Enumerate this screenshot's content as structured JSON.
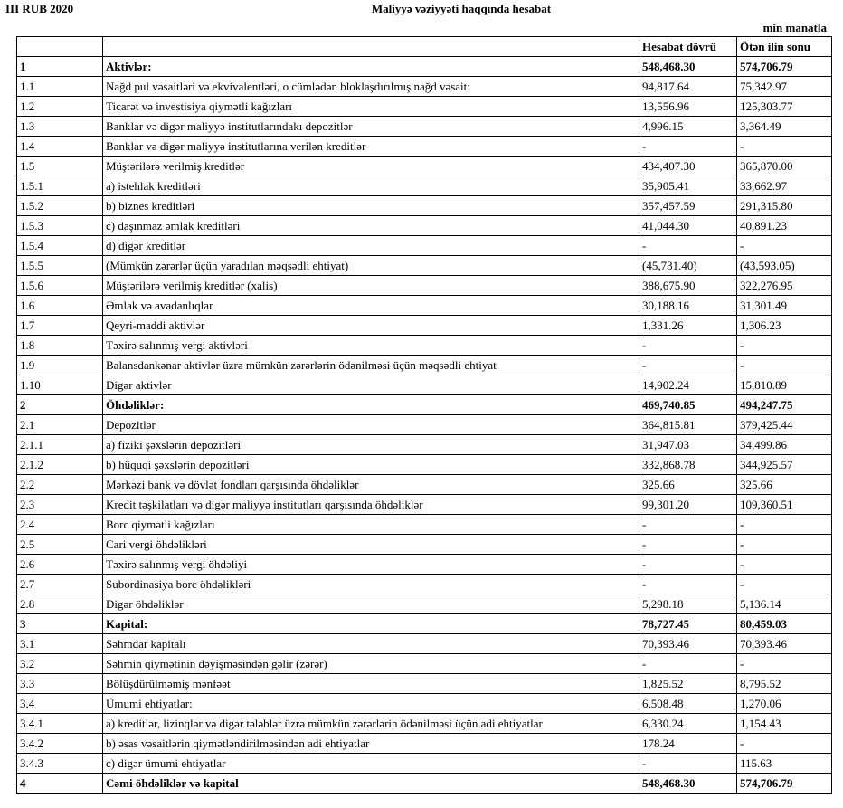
{
  "header": {
    "period": "III RUB 2020",
    "title": "Maliyyə vəziyyəti haqqında hesabat",
    "unit": "min manatla"
  },
  "table": {
    "columns": [
      "Hesabat dövrü",
      "Ötən ilin sonu"
    ],
    "rows": [
      {
        "id": "1",
        "label": "Aktivlər:",
        "current": "548,468.30",
        "previous": "574,706.79",
        "bold": true
      },
      {
        "id": "1.1",
        "label": "Nağd pul vəsaitləri və ekvivalentləri, o cümlədən bloklaşdırılmış nağd vəsait:",
        "current": "94,817.64",
        "previous": "75,342.97"
      },
      {
        "id": "1.2",
        "label": "Ticarət və investisiya qiymətli kağızları",
        "current": "13,556.96",
        "previous": "125,303.77"
      },
      {
        "id": "1.3",
        "label": "Banklar və digər maliyyə institutlarındakı depozitlər",
        "current": "4,996.15",
        "previous": "3,364.49"
      },
      {
        "id": "1.4",
        "label": "Banklar və digər maliyyə institutlarına verilən kreditlər",
        "current": "-",
        "previous": "-"
      },
      {
        "id": "1.5",
        "label": "Müştərilərə verilmiş kreditlər",
        "current": "434,407.30",
        "previous": "365,870.00"
      },
      {
        "id": "1.5.1",
        "label": "a) istehlak kreditləri",
        "current": "35,905.41",
        "previous": "33,662.97"
      },
      {
        "id": "1.5.2",
        "label": "b) biznes kreditləri",
        "current": "357,457.59",
        "previous": "291,315.80"
      },
      {
        "id": "1.5.3",
        "label": "c) daşınmaz əmlak kreditləri",
        "current": "41,044.30",
        "previous": "40,891.23"
      },
      {
        "id": "1.5.4",
        "label": "d) digər kreditlər",
        "current": "-",
        "previous": "-"
      },
      {
        "id": "1.5.5",
        "label": "(Mümkün zərərlər üçün yaradılan məqsədli ehtiyat)",
        "current": "(45,731.40)",
        "previous": "(43,593.05)"
      },
      {
        "id": "1.5.6",
        "label": "Müştərilərə verilmiş kreditlər (xalis)",
        "current": "388,675.90",
        "previous": "322,276.95"
      },
      {
        "id": "1.6",
        "label": "Əmlak və avadanlıqlar",
        "current": "30,188.16",
        "previous": "31,301.49"
      },
      {
        "id": "1.7",
        "label": "Qeyri-maddi aktivlər",
        "current": "1,331.26",
        "previous": "1,306.23"
      },
      {
        "id": "1.8",
        "label": "Təxirə salınmış vergi aktivləri",
        "current": "-",
        "previous": "-"
      },
      {
        "id": "1.9",
        "label": "Balansdankənar aktivlər üzrə mümkün zərərlərin ödənilməsi üçün məqsədli ehtiyat",
        "current": "-",
        "previous": "-"
      },
      {
        "id": "1.10",
        "label": "Digər aktivlər",
        "current": "14,902.24",
        "previous": "15,810.89"
      },
      {
        "id": "2",
        "label": "Öhdəliklər:",
        "current": "469,740.85",
        "previous": "494,247.75",
        "bold": true
      },
      {
        "id": "2.1",
        "label": "Depozitlər",
        "current": "364,815.81",
        "previous": "379,425.44"
      },
      {
        "id": "2.1.1",
        "label": "a) fiziki şəxslərin depozitləri",
        "current": "31,947.03",
        "previous": "34,499.86"
      },
      {
        "id": "2.1.2",
        "label": "b) hüquqi şəxslərin depozitləri",
        "current": "332,868.78",
        "previous": "344,925.57"
      },
      {
        "id": "2.2",
        "label": "Mərkəzi bank və dövlət fondları qarşısında öhdəliklər",
        "current": "325.66",
        "previous": "325.66"
      },
      {
        "id": "2.3",
        "label": "Kredit təşkilatları və digər maliyyə institutları qarşısında öhdəliklər",
        "current": "99,301.20",
        "previous": "109,360.51"
      },
      {
        "id": "2.4",
        "label": "Borc qiymətli kağızları",
        "current": "-",
        "previous": "-"
      },
      {
        "id": "2.5",
        "label": "Cari vergi öhdəlikləri",
        "current": "-",
        "previous": "-"
      },
      {
        "id": "2.6",
        "label": "Təxirə salınmış vergi öhdəliyi",
        "current": "-",
        "previous": "-"
      },
      {
        "id": "2.7",
        "label": "Subordinasiya borc öhdəlikləri",
        "current": "-",
        "previous": "-"
      },
      {
        "id": "2.8",
        "label": "Digər öhdəliklər",
        "current": "5,298.18",
        "previous": "5,136.14"
      },
      {
        "id": "3",
        "label": "Kapital:",
        "current": "78,727.45",
        "previous": "80,459.03",
        "bold": true
      },
      {
        "id": "3.1",
        "label": "Səhmdar kapitalı",
        "current": "70,393.46",
        "previous": "70,393.46"
      },
      {
        "id": "3.2",
        "label": "Səhmin qiymətinin dəyişməsindən gəlir (zərər)",
        "current": "-",
        "previous": "-"
      },
      {
        "id": "3.3",
        "label": "Bölüşdürülməmiş mənfəət",
        "current": "1,825.52",
        "previous": "8,795.52"
      },
      {
        "id": "3.4",
        "label": "Ümumi ehtiyatlar:",
        "current": "6,508.48",
        "previous": "1,270.06"
      },
      {
        "id": "3.4.1",
        "label": "a) kreditlər, lizinqlər və digər tələblər üzrə mümkün zərərlərin ödənilməsi üçün adi ehtiyatlar",
        "current": "6,330.24",
        "previous": "1,154.43"
      },
      {
        "id": "3.4.2",
        "label": "b) əsas vəsaitlərin qiymətləndirilməsindən adi ehtiyatlar",
        "current": "178.24",
        "previous": "-"
      },
      {
        "id": "3.4.3",
        "label": "c) digər ümumi ehtiyatlar",
        "current": "-",
        "previous": "115.63"
      },
      {
        "id": "4",
        "label": "Cəmi öhdəliklər və kapital",
        "current": "548,468.30",
        "previous": "574,706.79",
        "bold": true
      }
    ]
  }
}
